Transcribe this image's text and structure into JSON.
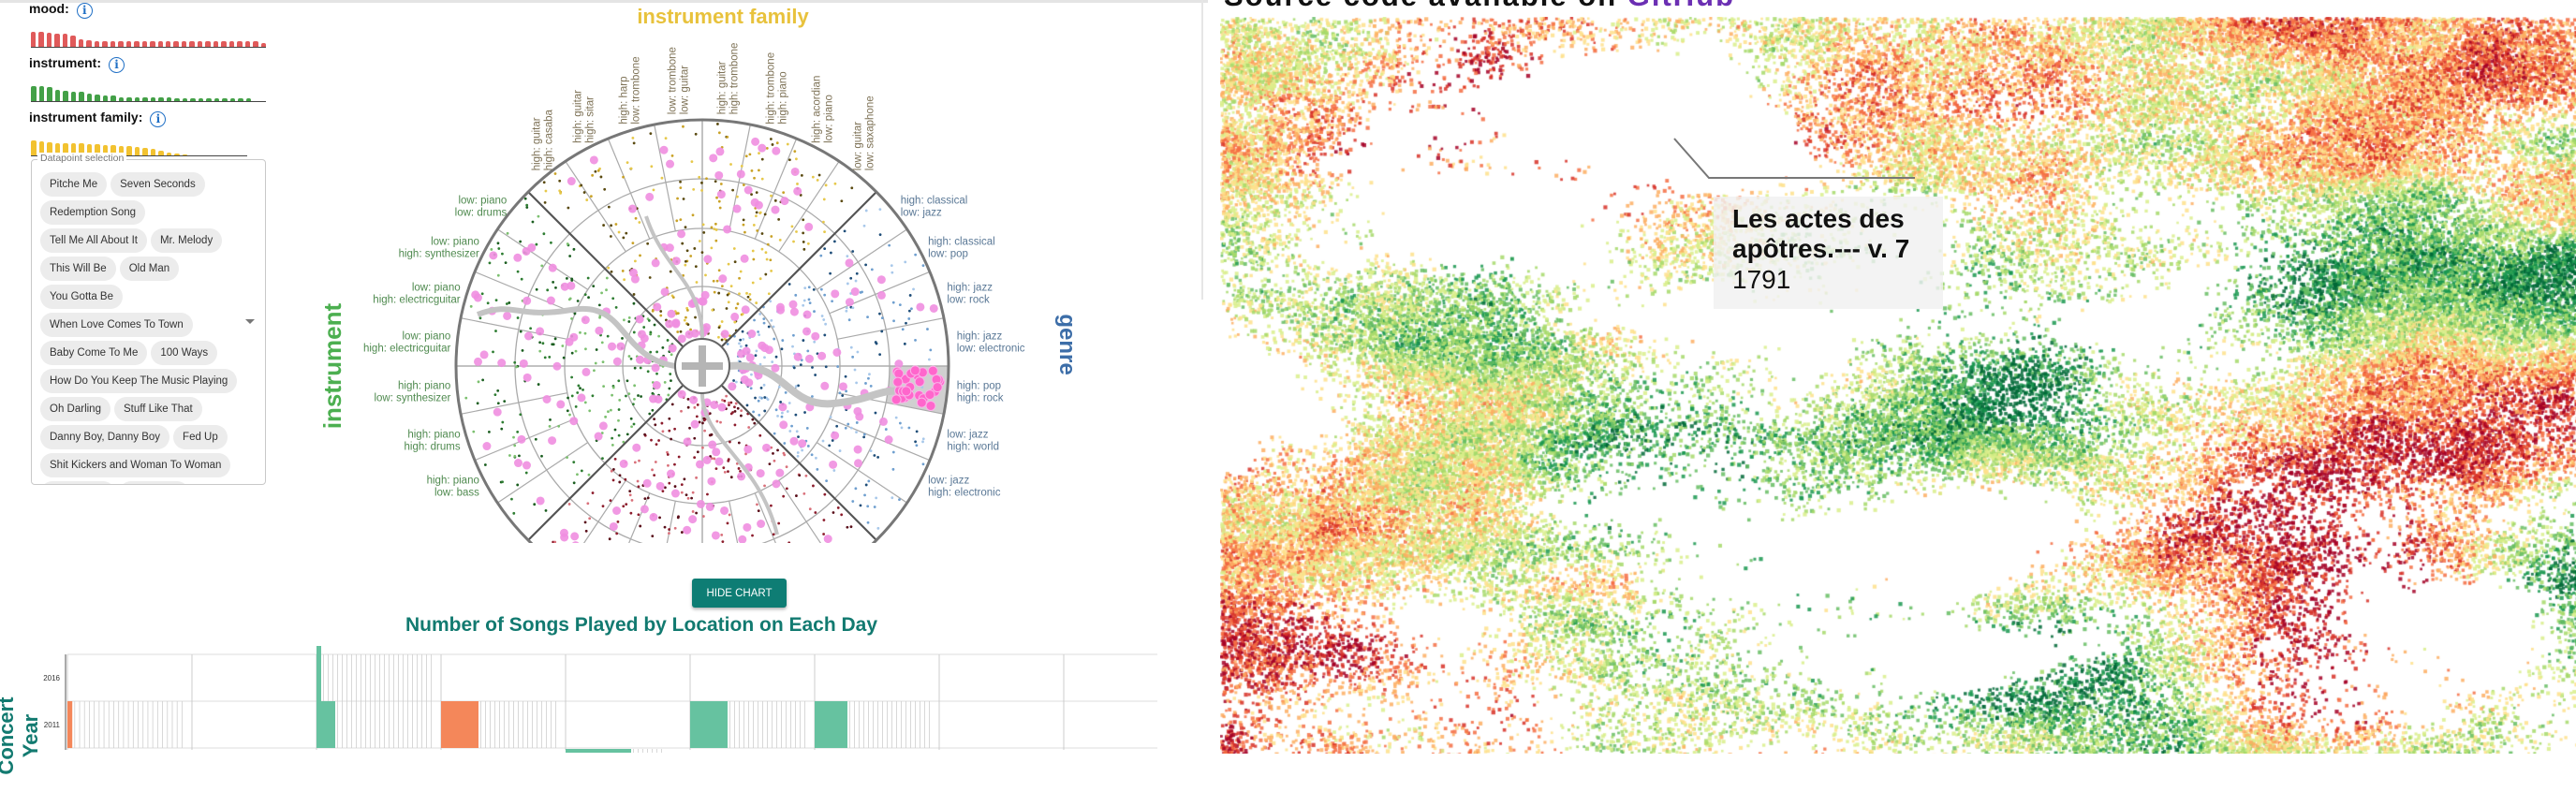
{
  "filters": [
    {
      "label": "mood:",
      "color": "#e05a5a",
      "bars": [
        16,
        16,
        15,
        14,
        14,
        12,
        8,
        7,
        6,
        6,
        6,
        6,
        6,
        6,
        6,
        6,
        6,
        6,
        6,
        6,
        6,
        6,
        6,
        6,
        6,
        6,
        6,
        6,
        6,
        4
      ]
    },
    {
      "label": "instrument:",
      "color": "#43a047",
      "bars": [
        16,
        16,
        15,
        12,
        11,
        10,
        10,
        8,
        7,
        6,
        6,
        4,
        4,
        4,
        4,
        4,
        4,
        4,
        3,
        3,
        3,
        3,
        3,
        3,
        3,
        3,
        3,
        3
      ]
    },
    {
      "label": "instrument family:",
      "color": "#f2c230",
      "bars": [
        16,
        15,
        14,
        13,
        13,
        13,
        13,
        12,
        12,
        11,
        11,
        10,
        10,
        9,
        8,
        7,
        5,
        3,
        2,
        1
      ]
    }
  ],
  "info_icon": "info-circle-icon",
  "datapoint_selection": {
    "legend": "Datapoint selection",
    "rows": [
      [
        "Pitche Me",
        "Seven Seconds"
      ],
      [
        "Redemption Song"
      ],
      [
        "Tell Me All About It",
        "Mr. Melody"
      ],
      [
        "This Will Be",
        "Old Man"
      ],
      [
        "You Gotta Be"
      ],
      [
        "When Love Comes To Town"
      ],
      [
        "Baby Come To Me",
        "100 Ways"
      ],
      [
        "How Do You Keep The Music Playing"
      ],
      [
        "Oh Darling",
        "Stuff Like That"
      ],
      [
        "Danny Boy, Danny Boy",
        "Fed Up"
      ],
      [
        "Shit Kickers and Woman To Woman"
      ]
    ]
  },
  "radial": {
    "top_title": "instrument family",
    "left_title": "instrument",
    "right_title": "genre",
    "colors": {
      "top": "#e8c23c",
      "left": "#4caf50",
      "right": "#3d6ea8",
      "top_labels": "#7d7155",
      "left_labels": "#4f8a4f",
      "right_labels": "#5a7896",
      "highlight": "#ff66cc"
    },
    "top_labels": [
      [
        "high: guitar",
        "high: casaba"
      ],
      [
        "high: guitar",
        "high: sitar"
      ],
      [
        "high: harp",
        "low: trombone"
      ],
      [
        "low: trombone",
        "low: guitar"
      ],
      [
        "high: guitar",
        "high: trombone"
      ],
      [
        "high: trombone",
        "high: piano"
      ],
      [
        "high: acordian",
        "low: piano"
      ],
      [
        "low: guitar",
        "low: saxaphone"
      ]
    ],
    "right_labels": [
      [
        "high: classical",
        "low: jazz"
      ],
      [
        "high: classical",
        "low: pop"
      ],
      [
        "high: jazz",
        "low: rock"
      ],
      [
        "high: jazz",
        "low: electronic"
      ],
      [
        "high: pop",
        "high: rock"
      ],
      [
        "low: jazz",
        "high: world"
      ],
      [
        "low: jazz",
        "high: electronic"
      ]
    ],
    "left_labels": [
      [
        "low: piano",
        "low: drums"
      ],
      [
        "low: piano",
        "high: synthesizer"
      ],
      [
        "low: piano",
        "high: electricguitar"
      ],
      [
        "low: piano",
        "high: electricguitar"
      ],
      [
        "high: piano",
        "low: synthesizer"
      ],
      [
        "high: piano",
        "high: drums"
      ],
      [
        "high: piano",
        "low: bass"
      ]
    ]
  },
  "hide_chart_label": "HIDE CHART",
  "chart_data": {
    "type": "heatmap",
    "title": "Number of Songs Played by Location on Each Day",
    "ylabel": "Concert Year",
    "y_categories": [
      "2016",
      "2011"
    ],
    "columns": 8,
    "cells": [
      {
        "year": "2011",
        "column": 0,
        "colored_days": 1,
        "color": "#f4875a",
        "days": 24
      },
      {
        "year": "2016",
        "column": 2,
        "colored_days": 1,
        "color": "#66c2a0",
        "days": 25
      },
      {
        "year": "2011",
        "column": 2,
        "colored_days": 4,
        "color": "#66c2a0",
        "days": 25
      },
      {
        "year": "2011",
        "column": 3,
        "colored_days": 8,
        "color": "#f4875a",
        "days": 25
      },
      {
        "year": "2011",
        "column": 4,
        "colored_days": 14,
        "color": "#66c2a0",
        "days": 25,
        "partial": true
      },
      {
        "year": "2011",
        "column": 5,
        "colored_days": 8,
        "color": "#66c2a0",
        "days": 25
      },
      {
        "year": "2011",
        "column": 6,
        "colored_days": 7,
        "color": "#66c2a0",
        "days": 25
      }
    ]
  },
  "map": {
    "source_text": "Source code available on ",
    "source_link": "GitHub",
    "tooltip_title": "Les actes des apôtres.--- v. 7",
    "tooltip_year": "1791",
    "palette": [
      "#006837",
      "#1a9850",
      "#66bd63",
      "#a6d96a",
      "#d9ef8b",
      "#fee08b",
      "#fdae61",
      "#f46d43",
      "#d73027",
      "#a50026"
    ]
  }
}
